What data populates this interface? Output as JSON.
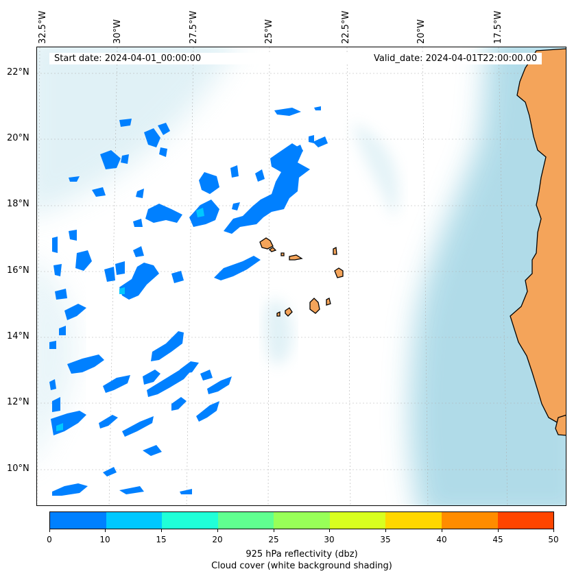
{
  "map": {
    "start_date_text": "Start date: 2024-04-01_00:00:00",
    "valid_date_text": "Valid_date: 2024-04-01T22:00:00.00",
    "lon_labels": [
      "32.5°W",
      "30°W",
      "27.5°W",
      "25°W",
      "22.5°W",
      "20°W",
      "17.5°W"
    ],
    "lat_labels": [
      "22°N",
      "20°N",
      "18°N",
      "16°N",
      "14°N",
      "12°N",
      "10°N"
    ],
    "colors": {
      "land": "#f4a45a",
      "coastline": "#000000",
      "cloud_cover_shade": "#a8d8e6",
      "grid": "#b0b0b0"
    }
  },
  "colorbar": {
    "ticks": [
      "0",
      "10",
      "15",
      "20",
      "25",
      "30",
      "35",
      "40",
      "45",
      "50"
    ],
    "colors": [
      "#0080ff",
      "#00c8ff",
      "#20ffd8",
      "#60ff90",
      "#98ff58",
      "#d8ff20",
      "#ffd700",
      "#ff8c00",
      "#ff4500"
    ],
    "label_line1": "925 hPa reflectivity (dbz)",
    "label_line2": "Cloud cover (white background shading)"
  }
}
